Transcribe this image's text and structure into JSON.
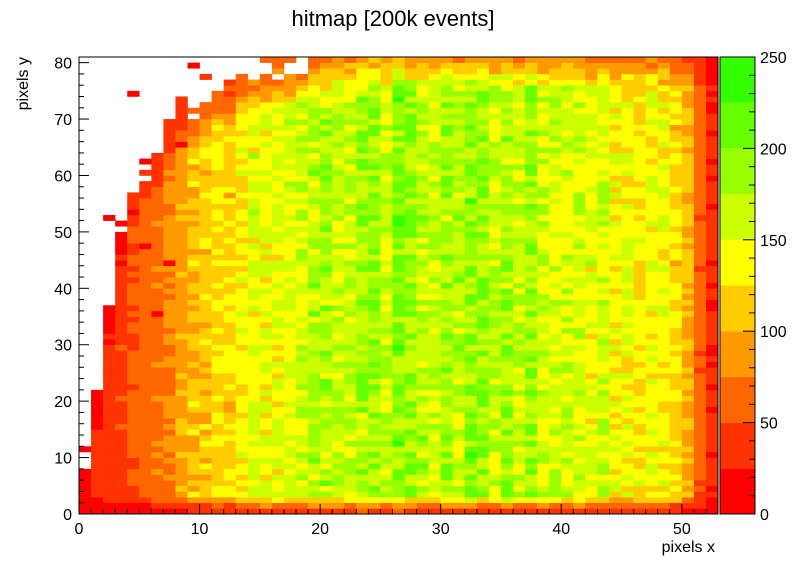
{
  "chart_data": {
    "type": "heatmap",
    "title": "hitmap [200k events]",
    "xlabel": "pixels x",
    "ylabel": "pixels y",
    "xlim": [
      0,
      53
    ],
    "ylim": [
      0,
      81
    ],
    "x_ticks": [
      0,
      10,
      20,
      30,
      40,
      50
    ],
    "y_ticks": [
      0,
      10,
      20,
      30,
      40,
      50,
      60,
      70,
      80
    ],
    "zlim": [
      0,
      250
    ],
    "z_ticks": [
      0,
      50,
      100,
      150,
      200,
      250
    ],
    "z_step": 25,
    "palette": [
      "#ff0000",
      "#ff3300",
      "#ff6600",
      "#ff9900",
      "#ffcc00",
      "#ffff00",
      "#ccff00",
      "#99ff00",
      "#66ff00",
      "#33ff00"
    ],
    "column_profile": [
      {
        "x": 0,
        "value": 20
      },
      {
        "x": 5,
        "value": 55
      },
      {
        "x": 10,
        "value": 110
      },
      {
        "x": 15,
        "value": 150
      },
      {
        "x": 20,
        "value": 170
      },
      {
        "x": 25,
        "value": 180
      },
      {
        "x": 30,
        "value": 180
      },
      {
        "x": 35,
        "value": 175
      },
      {
        "x": 40,
        "value": 165
      },
      {
        "x": 45,
        "value": 145
      },
      {
        "x": 49,
        "value": 125
      },
      {
        "x": 51,
        "value": 85
      },
      {
        "x": 52,
        "value": 25
      }
    ],
    "occupancy_edge": [
      {
        "x": 0,
        "y": 0
      },
      {
        "x": 4,
        "y": 53
      },
      {
        "x": 8,
        "y": 68
      },
      {
        "x": 12,
        "y": 74
      },
      {
        "x": 18,
        "y": 78
      },
      {
        "x": 22,
        "y": 81
      }
    ],
    "row_profile": [
      {
        "y": 0,
        "factor": 0.25
      },
      {
        "y": 1,
        "factor": 0.45
      },
      {
        "y": 2,
        "factor": 0.75
      },
      {
        "y": 3,
        "factor": 1.0
      }
    ],
    "hot_spots": [
      {
        "x": 2,
        "y": 52,
        "value": 8
      },
      {
        "x": 3,
        "y": 51,
        "value": 5
      },
      {
        "x": 4,
        "y": 53,
        "value": 10
      },
      {
        "x": 5,
        "y": 47,
        "value": 15
      },
      {
        "x": 3,
        "y": 48,
        "value": 20
      },
      {
        "x": 7,
        "y": 44,
        "value": 12
      },
      {
        "x": 6,
        "y": 35,
        "value": 15
      },
      {
        "x": 8,
        "y": 65,
        "value": 15
      },
      {
        "x": 4,
        "y": 74,
        "value": 15
      },
      {
        "x": 15,
        "y": 81,
        "value": 15
      },
      {
        "x": 9,
        "y": 79,
        "value": 20
      }
    ]
  }
}
